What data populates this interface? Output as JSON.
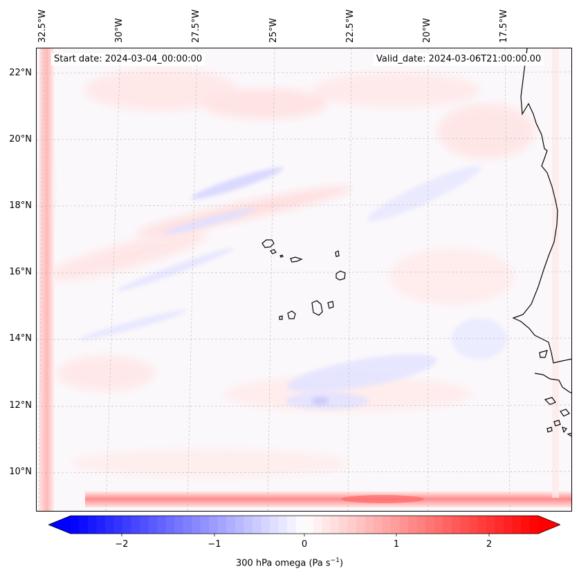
{
  "map": {
    "start_date": "Start date: 2024-03-04_00:00:00",
    "valid_date": "Valid_date: 2024-03-06T21:00:00.00",
    "lon_labels": [
      "32.5°W",
      "30°W",
      "27.5°W",
      "25°W",
      "22.5°W",
      "20°W",
      "17.5°W"
    ],
    "lat_labels": [
      "22°N",
      "20°N",
      "18°N",
      "16°N",
      "14°N",
      "12°N",
      "10°N"
    ],
    "field": "300 hPa omega",
    "features": [
      "Cape Verde islands",
      "West African coastline"
    ]
  },
  "colorbar": {
    "ticks": [
      "−2",
      "−1",
      "0",
      "1",
      "2"
    ],
    "label_main": "300 hPa omega (Pa s",
    "label_exp": "−1",
    "label_close": ")",
    "min": -2.7,
    "max": 2.7,
    "colors": {
      "low": "#0000ff",
      "mid": "#ffffff",
      "high": "#ff0000"
    }
  }
}
